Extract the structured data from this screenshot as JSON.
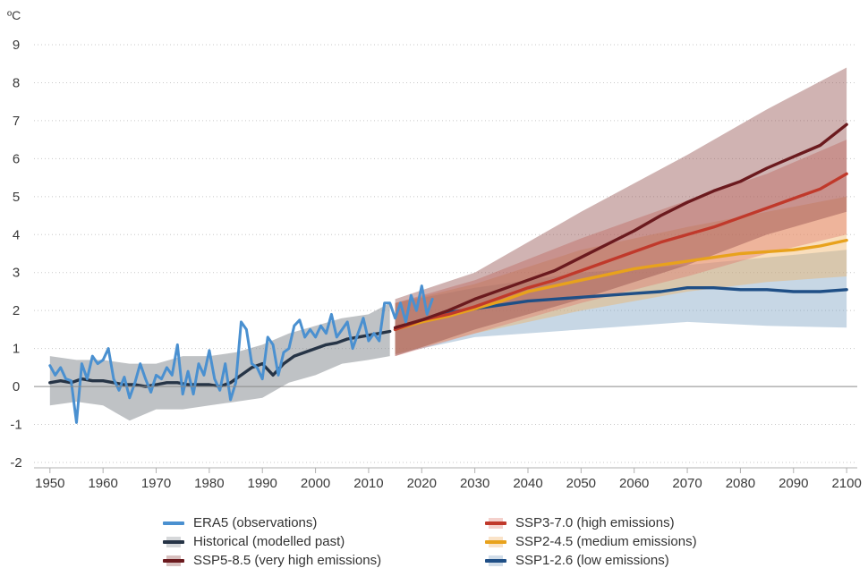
{
  "chart_data": {
    "type": "line",
    "unit": "ºC",
    "ylim": [
      -2,
      9
    ],
    "yticks": [
      "9",
      "8",
      "7",
      "6",
      "5",
      "4",
      "3",
      "2",
      "1",
      "0",
      "-1",
      "-2"
    ],
    "xlim": [
      1947,
      2102
    ],
    "xticks": [
      "1950",
      "1960",
      "1970",
      "1980",
      "1990",
      "2000",
      "2010",
      "2020",
      "2030",
      "2040",
      "2050",
      "2060",
      "2070",
      "2080",
      "2090",
      "2100"
    ],
    "grid": "horizontal dotted",
    "legend_position": "bottom",
    "series": [
      {
        "name": "ERA5 (observations)",
        "color": "#4a90d0",
        "band": false,
        "points": [
          [
            1950,
            0.55
          ],
          [
            1951,
            0.3
          ],
          [
            1952,
            0.5
          ],
          [
            1953,
            0.2
          ],
          [
            1954,
            0.15
          ],
          [
            1955,
            -0.95
          ],
          [
            1956,
            0.6
          ],
          [
            1957,
            0.2
          ],
          [
            1958,
            0.8
          ],
          [
            1959,
            0.6
          ],
          [
            1960,
            0.7
          ],
          [
            1961,
            1.0
          ],
          [
            1962,
            0.2
          ],
          [
            1963,
            -0.1
          ],
          [
            1964,
            0.25
          ],
          [
            1965,
            -0.3
          ],
          [
            1966,
            0.1
          ],
          [
            1967,
            0.6
          ],
          [
            1968,
            0.2
          ],
          [
            1969,
            -0.15
          ],
          [
            1970,
            0.3
          ],
          [
            1971,
            0.2
          ],
          [
            1972,
            0.5
          ],
          [
            1973,
            0.3
          ],
          [
            1974,
            1.1
          ],
          [
            1975,
            -0.2
          ],
          [
            1976,
            0.4
          ],
          [
            1977,
            -0.2
          ],
          [
            1978,
            0.6
          ],
          [
            1979,
            0.3
          ],
          [
            1980,
            0.95
          ],
          [
            1981,
            0.2
          ],
          [
            1982,
            -0.1
          ],
          [
            1983,
            0.6
          ],
          [
            1984,
            -0.35
          ],
          [
            1985,
            0.1
          ],
          [
            1986,
            1.7
          ],
          [
            1987,
            1.5
          ],
          [
            1988,
            0.6
          ],
          [
            1989,
            0.5
          ],
          [
            1990,
            0.2
          ],
          [
            1991,
            1.3
          ],
          [
            1992,
            1.1
          ],
          [
            1993,
            0.3
          ],
          [
            1994,
            0.9
          ],
          [
            1995,
            1.0
          ],
          [
            1996,
            1.6
          ],
          [
            1997,
            1.75
          ],
          [
            1998,
            1.3
          ],
          [
            1999,
            1.5
          ],
          [
            2000,
            1.3
          ],
          [
            2001,
            1.6
          ],
          [
            2002,
            1.4
          ],
          [
            2003,
            1.9
          ],
          [
            2004,
            1.3
          ],
          [
            2005,
            1.5
          ],
          [
            2006,
            1.7
          ],
          [
            2007,
            1.0
          ],
          [
            2008,
            1.4
          ],
          [
            2009,
            1.8
          ],
          [
            2010,
            1.2
          ],
          [
            2011,
            1.4
          ],
          [
            2012,
            1.2
          ],
          [
            2013,
            2.2
          ],
          [
            2014,
            2.2
          ],
          [
            2015,
            1.8
          ],
          [
            2016,
            2.2
          ],
          [
            2017,
            1.7
          ],
          [
            2018,
            2.4
          ],
          [
            2019,
            2.0
          ],
          [
            2020,
            2.65
          ],
          [
            2021,
            1.9
          ],
          [
            2022,
            2.3
          ]
        ]
      },
      {
        "name": "Historical (modelled past)",
        "color": "#263446",
        "band": true,
        "band_color": "#8a9096",
        "points": [
          [
            1950,
            0.1
          ],
          [
            1952,
            0.15
          ],
          [
            1954,
            0.1
          ],
          [
            1956,
            0.2
          ],
          [
            1958,
            0.15
          ],
          [
            1960,
            0.15
          ],
          [
            1962,
            0.1
          ],
          [
            1964,
            0.05
          ],
          [
            1966,
            0.05
          ],
          [
            1968,
            0.0
          ],
          [
            1970,
            0.05
          ],
          [
            1972,
            0.1
          ],
          [
            1974,
            0.1
          ],
          [
            1976,
            0.05
          ],
          [
            1978,
            0.05
          ],
          [
            1980,
            0.05
          ],
          [
            1982,
            0.0
          ],
          [
            1984,
            0.1
          ],
          [
            1986,
            0.3
          ],
          [
            1988,
            0.5
          ],
          [
            1990,
            0.6
          ],
          [
            1992,
            0.3
          ],
          [
            1994,
            0.6
          ],
          [
            1996,
            0.8
          ],
          [
            1998,
            0.9
          ],
          [
            2000,
            1.0
          ],
          [
            2002,
            1.1
          ],
          [
            2004,
            1.15
          ],
          [
            2006,
            1.25
          ],
          [
            2008,
            1.3
          ],
          [
            2010,
            1.35
          ],
          [
            2012,
            1.4
          ],
          [
            2014,
            1.45
          ]
        ],
        "band_low": [
          [
            1950,
            -0.5
          ],
          [
            1955,
            -0.4
          ],
          [
            1960,
            -0.5
          ],
          [
            1965,
            -0.9
          ],
          [
            1970,
            -0.6
          ],
          [
            1975,
            -0.6
          ],
          [
            1980,
            -0.5
          ],
          [
            1985,
            -0.4
          ],
          [
            1990,
            -0.3
          ],
          [
            1995,
            0.1
          ],
          [
            2000,
            0.3
          ],
          [
            2005,
            0.6
          ],
          [
            2010,
            0.7
          ],
          [
            2014,
            0.8
          ]
        ],
        "band_high": [
          [
            1950,
            0.8
          ],
          [
            1955,
            0.7
          ],
          [
            1960,
            0.7
          ],
          [
            1965,
            0.6
          ],
          [
            1970,
            0.6
          ],
          [
            1975,
            0.8
          ],
          [
            1980,
            0.8
          ],
          [
            1985,
            0.9
          ],
          [
            1990,
            1.1
          ],
          [
            1995,
            1.4
          ],
          [
            2000,
            1.6
          ],
          [
            2005,
            1.8
          ],
          [
            2010,
            1.9
          ],
          [
            2014,
            2.2
          ]
        ]
      },
      {
        "name": "SSP5-8.5 (very high emissions)",
        "color": "#6b1a1e",
        "band": true,
        "band_color": "#8e4a48",
        "points": [
          [
            2015,
            1.55
          ],
          [
            2020,
            1.75
          ],
          [
            2025,
            2.0
          ],
          [
            2030,
            2.3
          ],
          [
            2035,
            2.55
          ],
          [
            2040,
            2.8
          ],
          [
            2045,
            3.05
          ],
          [
            2050,
            3.4
          ],
          [
            2055,
            3.75
          ],
          [
            2060,
            4.1
          ],
          [
            2065,
            4.5
          ],
          [
            2070,
            4.85
          ],
          [
            2075,
            5.15
          ],
          [
            2080,
            5.4
          ],
          [
            2085,
            5.75
          ],
          [
            2090,
            6.05
          ],
          [
            2095,
            6.35
          ],
          [
            2100,
            6.9
          ]
        ],
        "band_low": [
          [
            2015,
            0.8
          ],
          [
            2030,
            1.5
          ],
          [
            2050,
            2.3
          ],
          [
            2070,
            3.2
          ],
          [
            2085,
            4.0
          ],
          [
            2100,
            4.6
          ]
        ],
        "band_high": [
          [
            2015,
            2.3
          ],
          [
            2030,
            3.0
          ],
          [
            2050,
            4.6
          ],
          [
            2070,
            6.1
          ],
          [
            2085,
            7.3
          ],
          [
            2100,
            8.4
          ]
        ]
      },
      {
        "name": "SSP3-7.0 (high emissions)",
        "color": "#c0392b",
        "band": true,
        "band_color": "#e07a6e",
        "points": [
          [
            2015,
            1.5
          ],
          [
            2020,
            1.75
          ],
          [
            2025,
            1.9
          ],
          [
            2030,
            2.1
          ],
          [
            2035,
            2.35
          ],
          [
            2040,
            2.6
          ],
          [
            2045,
            2.8
          ],
          [
            2050,
            3.05
          ],
          [
            2055,
            3.3
          ],
          [
            2060,
            3.55
          ],
          [
            2065,
            3.8
          ],
          [
            2070,
            4.0
          ],
          [
            2075,
            4.2
          ],
          [
            2080,
            4.45
          ],
          [
            2085,
            4.7
          ],
          [
            2090,
            4.95
          ],
          [
            2095,
            5.2
          ],
          [
            2100,
            5.6
          ]
        ],
        "band_low": [
          [
            2015,
            0.8
          ],
          [
            2030,
            1.4
          ],
          [
            2050,
            2.2
          ],
          [
            2070,
            2.9
          ],
          [
            2085,
            3.5
          ],
          [
            2100,
            4.0
          ]
        ],
        "band_high": [
          [
            2015,
            2.2
          ],
          [
            2030,
            2.8
          ],
          [
            2050,
            3.9
          ],
          [
            2070,
            4.9
          ],
          [
            2085,
            5.6
          ],
          [
            2100,
            6.5
          ]
        ]
      },
      {
        "name": "SSP2-4.5 (medium emissions)",
        "color": "#e8a21c",
        "band": true,
        "band_color": "#f0b060",
        "points": [
          [
            2015,
            1.5
          ],
          [
            2020,
            1.7
          ],
          [
            2025,
            1.85
          ],
          [
            2030,
            2.05
          ],
          [
            2035,
            2.25
          ],
          [
            2040,
            2.5
          ],
          [
            2045,
            2.65
          ],
          [
            2050,
            2.8
          ],
          [
            2055,
            2.95
          ],
          [
            2060,
            3.1
          ],
          [
            2065,
            3.2
          ],
          [
            2070,
            3.3
          ],
          [
            2075,
            3.4
          ],
          [
            2080,
            3.5
          ],
          [
            2085,
            3.55
          ],
          [
            2090,
            3.6
          ],
          [
            2095,
            3.7
          ],
          [
            2100,
            3.85
          ]
        ],
        "band_low": [
          [
            2015,
            0.85
          ],
          [
            2030,
            1.4
          ],
          [
            2050,
            2.0
          ],
          [
            2070,
            2.5
          ],
          [
            2085,
            2.75
          ],
          [
            2100,
            2.9
          ]
        ],
        "band_high": [
          [
            2015,
            2.2
          ],
          [
            2030,
            2.7
          ],
          [
            2050,
            3.6
          ],
          [
            2070,
            4.2
          ],
          [
            2085,
            4.6
          ],
          [
            2100,
            5.0
          ]
        ]
      },
      {
        "name": "SSP1-2.6 (low emissions)",
        "color": "#1f4f86",
        "band": true,
        "band_color": "#7a9fc0",
        "points": [
          [
            2015,
            1.5
          ],
          [
            2020,
            1.75
          ],
          [
            2025,
            1.95
          ],
          [
            2030,
            2.05
          ],
          [
            2035,
            2.15
          ],
          [
            2040,
            2.25
          ],
          [
            2045,
            2.3
          ],
          [
            2050,
            2.35
          ],
          [
            2055,
            2.4
          ],
          [
            2060,
            2.45
          ],
          [
            2065,
            2.5
          ],
          [
            2070,
            2.6
          ],
          [
            2075,
            2.6
          ],
          [
            2080,
            2.55
          ],
          [
            2085,
            2.55
          ],
          [
            2090,
            2.5
          ],
          [
            2095,
            2.5
          ],
          [
            2100,
            2.55
          ]
        ],
        "band_low": [
          [
            2015,
            0.85
          ],
          [
            2030,
            1.3
          ],
          [
            2050,
            1.5
          ],
          [
            2070,
            1.7
          ],
          [
            2085,
            1.6
          ],
          [
            2100,
            1.55
          ]
        ],
        "band_high": [
          [
            2015,
            2.2
          ],
          [
            2030,
            2.6
          ],
          [
            2050,
            3.0
          ],
          [
            2070,
            3.2
          ],
          [
            2085,
            3.4
          ],
          [
            2100,
            3.6
          ]
        ]
      }
    ]
  },
  "legend": {
    "left": [
      {
        "label": "ERA5 (observations)",
        "color": "#4a90d0",
        "band": false
      },
      {
        "label": "Historical (modelled past)",
        "color": "#263446",
        "band_color": "#8a9096",
        "band": true
      },
      {
        "label": "SSP5-8.5 (very high emissions)",
        "color": "#6b1a1e",
        "band_color": "#8e4a48",
        "band": true
      }
    ],
    "right": [
      {
        "label": "SSP3-7.0 (high emissions)",
        "color": "#c0392b",
        "band_color": "#e07a6e",
        "band": true
      },
      {
        "label": "SSP2-4.5 (medium emissions)",
        "color": "#e8a21c",
        "band_color": "#f0b060",
        "band": true
      },
      {
        "label": "SSP1-2.6 (low emissions)",
        "color": "#1f4f86",
        "band_color": "#7a9fc0",
        "band": true
      }
    ]
  }
}
